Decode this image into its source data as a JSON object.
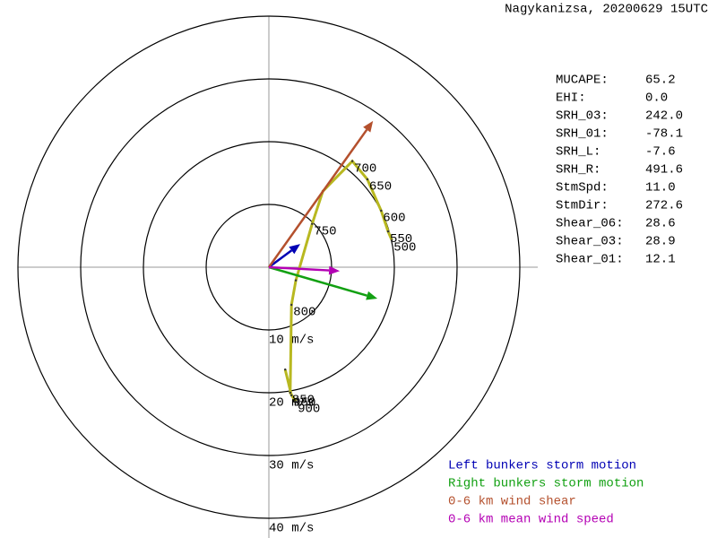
{
  "chart_data": {
    "type": "hodograph",
    "title": "Nagykanizsa, 20200629 15UTC",
    "rlim": [
      0,
      40
    ],
    "rticks": [
      {
        "value": 10,
        "label": "10 m/s"
      },
      {
        "value": 20,
        "label": "20 m/s"
      },
      {
        "value": 30,
        "label": "30 m/s"
      },
      {
        "value": 40,
        "label": "40 m/s"
      }
    ],
    "hodograph": {
      "color": "#b8b820",
      "u": [
        2.6,
        3.6,
        4.3,
        3.4,
        3.6,
        4.3,
        6.9,
        8.6,
        13.3,
        15.7,
        17.9,
        19.0,
        19.6
      ],
      "v": [
        -16.3,
        -20.4,
        -21.4,
        -20.0,
        -6.0,
        -2.1,
        6.9,
        12.1,
        16.9,
        14.0,
        9.0,
        5.7,
        4.3
      ],
      "labels": [
        null,
        "950",
        "900",
        "850",
        "800",
        null,
        "750",
        null,
        "700",
        "650",
        "600",
        "550",
        "500"
      ]
    },
    "series": [
      {
        "name": "Left bunkers storm motion",
        "color": "#0000b4",
        "u": 5.0,
        "v": 3.7
      },
      {
        "name": "Right bunkers storm motion",
        "color": "#12a012",
        "u": 17.3,
        "v": -5.0
      },
      {
        "name": "0-6 km wind shear",
        "color": "#b4502d",
        "u": 16.6,
        "v": 23.3
      },
      {
        "name": "0-6 km mean wind speed",
        "color": "#b400b4",
        "u": 11.3,
        "v": -0.6
      }
    ],
    "parameters": [
      [
        "MUCAPE:",
        "65.2"
      ],
      [
        "EHI:",
        "0.0"
      ],
      [
        "SRH_03:",
        "242.0"
      ],
      [
        "SRH_01:",
        "-78.1"
      ],
      [
        "SRH_L:",
        "-7.6"
      ],
      [
        "SRH_R:",
        "491.6"
      ],
      [
        "StmSpd:",
        "11.0"
      ],
      [
        "StmDir:",
        "272.6"
      ],
      [
        "Shear_06:",
        "28.6"
      ],
      [
        "Shear_03:",
        "28.9"
      ],
      [
        "Shear_01:",
        "12.1"
      ]
    ]
  }
}
